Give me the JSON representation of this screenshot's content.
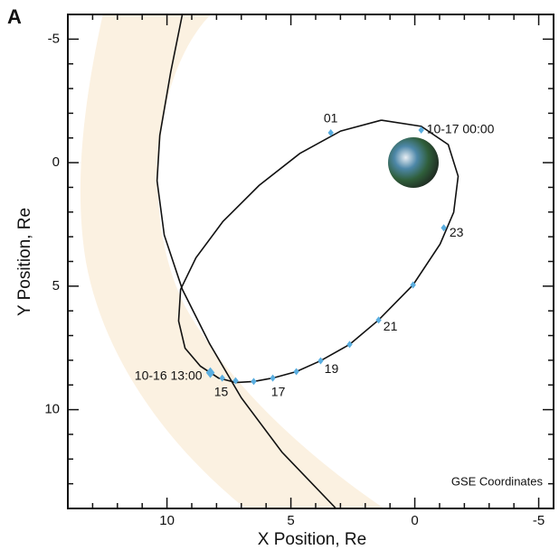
{
  "panel_label": "A",
  "chart_data": {
    "type": "orbit",
    "xlabel": "X Position, Re",
    "ylabel": "Y Position, Re",
    "annotation": "GSE Coordinates",
    "xlim": [
      14,
      -5.6
    ],
    "ylim": [
      -6,
      14
    ],
    "xticks": [
      10,
      5,
      0,
      -5
    ],
    "yticks": [
      -5,
      0,
      5,
      10
    ],
    "xminorticks": [
      13,
      12,
      11,
      9,
      8,
      7,
      6,
      4,
      3,
      2,
      1,
      -1,
      -2,
      -3,
      -4
    ],
    "yminorticks": [
      -4,
      -3,
      -2,
      -1,
      1,
      2,
      3,
      4,
      6,
      7,
      8,
      9,
      11,
      12,
      13
    ],
    "lines": [
      {
        "color": "#111111",
        "x": [
          1.35,
          -0.26,
          -1.35,
          -1.75,
          -1.57,
          -1.02,
          0.07,
          1.46,
          2.63,
          3.8,
          4.78,
          5.73,
          6.5,
          7.23,
          7.92,
          8.65,
          9.27,
          9.53,
          9.45,
          8.83,
          7.74,
          6.28,
          4.64,
          2.99,
          1.35
        ],
        "y": [
          -1.72,
          -1.47,
          -0.73,
          0.55,
          2.01,
          3.3,
          4.95,
          6.37,
          7.36,
          8.02,
          8.46,
          8.72,
          8.86,
          8.9,
          8.72,
          8.24,
          7.51,
          6.41,
          5.13,
          3.85,
          2.38,
          0.92,
          -0.37,
          -1.28,
          -1.72
        ]
      },
      {
        "color": "#111111",
        "x": [
          9.38,
          9.85,
          10.29,
          10.4,
          10.11,
          9.38,
          8.28,
          7.0,
          5.36,
          3.18
        ],
        "y": [
          -6.0,
          -3.66,
          -1.1,
          0.73,
          2.93,
          5.13,
          7.33,
          9.52,
          11.72,
          14.0
        ]
      }
    ],
    "points": {
      "color": "#5aaee0",
      "x": [
        8.25,
        7.77,
        7.23,
        6.5,
        5.73,
        4.78,
        3.8,
        2.63,
        1.46,
        0.07,
        -1.17,
        -0.26,
        3.39
      ],
      "y": [
        8.5,
        8.72,
        8.83,
        8.86,
        8.72,
        8.46,
        8.02,
        7.36,
        6.37,
        4.95,
        2.64,
        -1.32,
        -1.21
      ],
      "labels": [
        "10-16 13:00",
        null,
        "15",
        null,
        "17",
        null,
        "19",
        null,
        "21",
        null,
        "23",
        "10-17 00:00",
        "01"
      ]
    }
  }
}
